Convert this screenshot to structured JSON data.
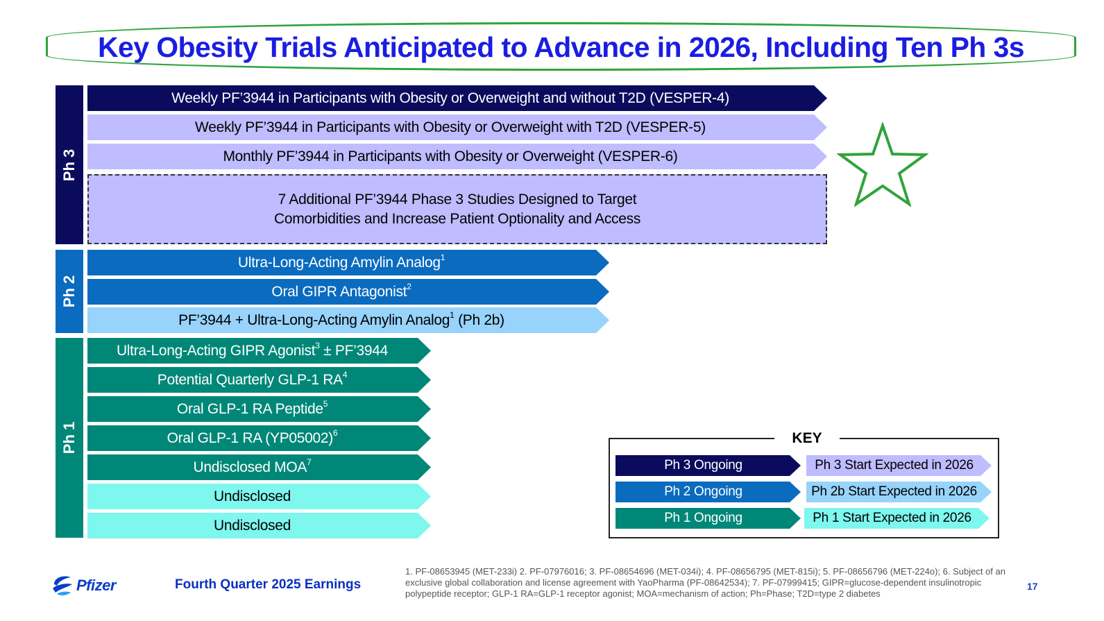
{
  "title": "Key Obesity Trials Anticipated to Advance in 2026, Including Ten Ph 3s",
  "phases": {
    "ph3": "Ph 3",
    "ph2": "Ph 2",
    "ph1": "Ph 1"
  },
  "ph3_rows": [
    {
      "text": "Weekly PF’3944 in Participants with Obesity or Overweight and without T2D (VESPER-4)",
      "sup": ""
    },
    {
      "text": "Weekly PF’3944 in Participants with Obesity or Overweight with T2D (VESPER-5)",
      "sup": ""
    },
    {
      "text": "Monthly PF’3944 in Participants with Obesity or Overweight (VESPER-6)",
      "sup": ""
    }
  ],
  "ph3_additional": {
    "line1": "7 Additional PF’3944 Phase 3 Studies Designed to Target",
    "line2": "Comorbidities and Increase Patient Optionality and Access"
  },
  "ph2_rows": [
    {
      "text": "Ultra-Long-Acting Amylin Analog",
      "sup": "1",
      "after": ""
    },
    {
      "text": "Oral GIPR Antagonist",
      "sup": "2",
      "after": ""
    },
    {
      "text": "PF’3944 + Ultra-Long-Acting Amylin Analog",
      "sup": "1",
      "after": " (Ph 2b)"
    }
  ],
  "ph1_rows": [
    {
      "text": "Ultra-Long-Acting GIPR Agonist",
      "sup": "3",
      "after": " ± PF’3944"
    },
    {
      "text": "Potential Quarterly GLP-1 RA",
      "sup": "4",
      "after": ""
    },
    {
      "text": "Oral GLP-1 RA Peptide",
      "sup": "5",
      "after": ""
    },
    {
      "text": "Oral GLP-1 RA (YP05002)",
      "sup": "6",
      "after": ""
    },
    {
      "text": "Undisclosed MOA",
      "sup": "7",
      "after": ""
    },
    {
      "text": "Undisclosed",
      "sup": "",
      "after": ""
    },
    {
      "text": "Undisclosed",
      "sup": "",
      "after": ""
    }
  ],
  "key": {
    "title": "KEY",
    "ph3_ongoing": "Ph 3 Ongoing",
    "ph3_start": "Ph 3 Start Expected in 2026",
    "ph2_ongoing": "Ph 2 Ongoing",
    "ph2b_start": "Ph 2b Start Expected in 2026",
    "ph1_ongoing": "Ph 1 Ongoing",
    "ph1_start": "Ph 1 Start Expected in 2026"
  },
  "colors": {
    "ph3_ongoing": "#0b0b5e",
    "ph3_start": "#bfbcff",
    "ph2_ongoing": "#0a6bbf",
    "ph2_start": "#97d3fb",
    "ph1_ongoing": "#008778",
    "ph1_start": "#7ef7ee",
    "title": "#1a1ee0",
    "highlight": "#2fa33a"
  },
  "footer": {
    "logo": "Pfizer",
    "earnings": "Fourth Quarter 2025 Earnings",
    "footnotes": "1. PF-08653945 (MET-233i) 2. PF-07976016; 3. PF-08654696 (MET-034i); 4. PF-08656795 (MET-815i); 5. PF-08656796 (MET-224o); 6. Subject of an exclusive global collaboration and license agreement with YaoPharma (PF-08642534); 7. PF-07999415; GIPR=glucose-dependent insulinotropic polypeptide receptor; GLP-1 RA=GLP-1 receptor agonist; MOA=mechanism of action; Ph=Phase; T2D=type 2 diabetes",
    "page": "17"
  }
}
